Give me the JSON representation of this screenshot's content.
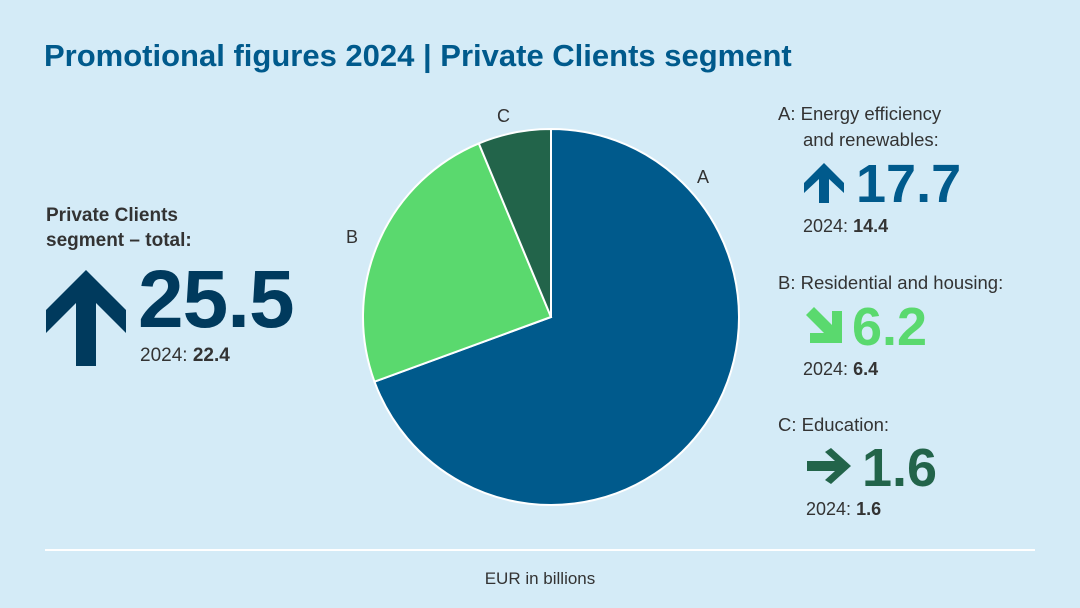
{
  "title": "Promotional figures 2024 | Private Clients segment",
  "total": {
    "label_line1": "Private Clients",
    "label_line2": "segment – total:",
    "value": "25.5",
    "prev_label": "2024:",
    "prev_value": "22.4",
    "trend_icon": "arrow-up-icon",
    "color": "#003a5d"
  },
  "categories": [
    {
      "key": "A",
      "label_line1": "A: Energy efficiency",
      "label_line2": "and renewables:",
      "value": "17.7",
      "prev_label": "2024:",
      "prev_value": "14.4",
      "trend_icon": "arrow-up-icon",
      "color": "#005a8c"
    },
    {
      "key": "B",
      "label_line1": "B: Residential and housing:",
      "value": "6.2",
      "prev_label": "2024:",
      "prev_value": "6.4",
      "trend_icon": "arrow-down-right-icon",
      "color": "#5ad96e"
    },
    {
      "key": "C",
      "label_line1": "C: Education:",
      "value": "1.6",
      "prev_label": "2024:",
      "prev_value": "1.6",
      "trend_icon": "arrow-right-icon",
      "color": "#22644a"
    }
  ],
  "unit": "EUR in billions",
  "chart_data": {
    "type": "pie",
    "categories": [
      "A",
      "B",
      "C"
    ],
    "values": [
      17.7,
      6.2,
      1.6
    ],
    "colors": [
      "#005a8c",
      "#5ad96e",
      "#22644a"
    ],
    "start": "top, clockwise"
  }
}
